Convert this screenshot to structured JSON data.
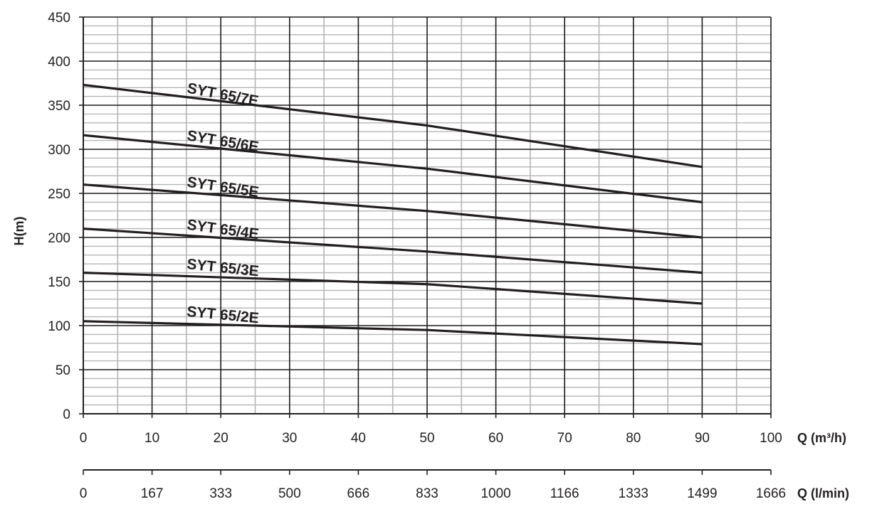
{
  "chart_data": {
    "type": "line",
    "ylabel": "H(m)",
    "xlabel": "Q (m³/h)",
    "x2label": "Q (l/min)",
    "xlim": [
      0,
      100
    ],
    "ylim": [
      0,
      450
    ],
    "x_ticks": [
      0,
      10,
      20,
      30,
      40,
      50,
      60,
      70,
      80,
      90,
      100
    ],
    "y_ticks": [
      0,
      50,
      100,
      150,
      200,
      250,
      300,
      350,
      400,
      450
    ],
    "x2_ticks": [
      "0",
      "167",
      "333",
      "500",
      "666",
      "833",
      "1000",
      "1166",
      "1333",
      "1499",
      "1666"
    ],
    "x_minor_step": 5,
    "y_minor_step": 10,
    "grid": true,
    "line_color": "#231f20",
    "major_grid_color": "#1a1a1a",
    "minor_grid_color": "#b5b5b5",
    "series": [
      {
        "name": "SYT 65/7E",
        "x": [
          0,
          50,
          90
        ],
        "y": [
          373,
          327,
          280
        ]
      },
      {
        "name": "SYT 65/6E",
        "x": [
          0,
          50,
          90
        ],
        "y": [
          316,
          278,
          240
        ]
      },
      {
        "name": "SYT 65/5E",
        "x": [
          0,
          50,
          90
        ],
        "y": [
          260,
          230,
          200
        ]
      },
      {
        "name": "SYT 65/4E",
        "x": [
          0,
          50,
          90
        ],
        "y": [
          210,
          184,
          160
        ]
      },
      {
        "name": "SYT 65/3E",
        "x": [
          0,
          50,
          90
        ],
        "y": [
          160,
          147,
          125
        ]
      },
      {
        "name": "SYT 65/2E",
        "x": [
          0,
          50,
          90
        ],
        "y": [
          105,
          95,
          79
        ]
      }
    ]
  }
}
